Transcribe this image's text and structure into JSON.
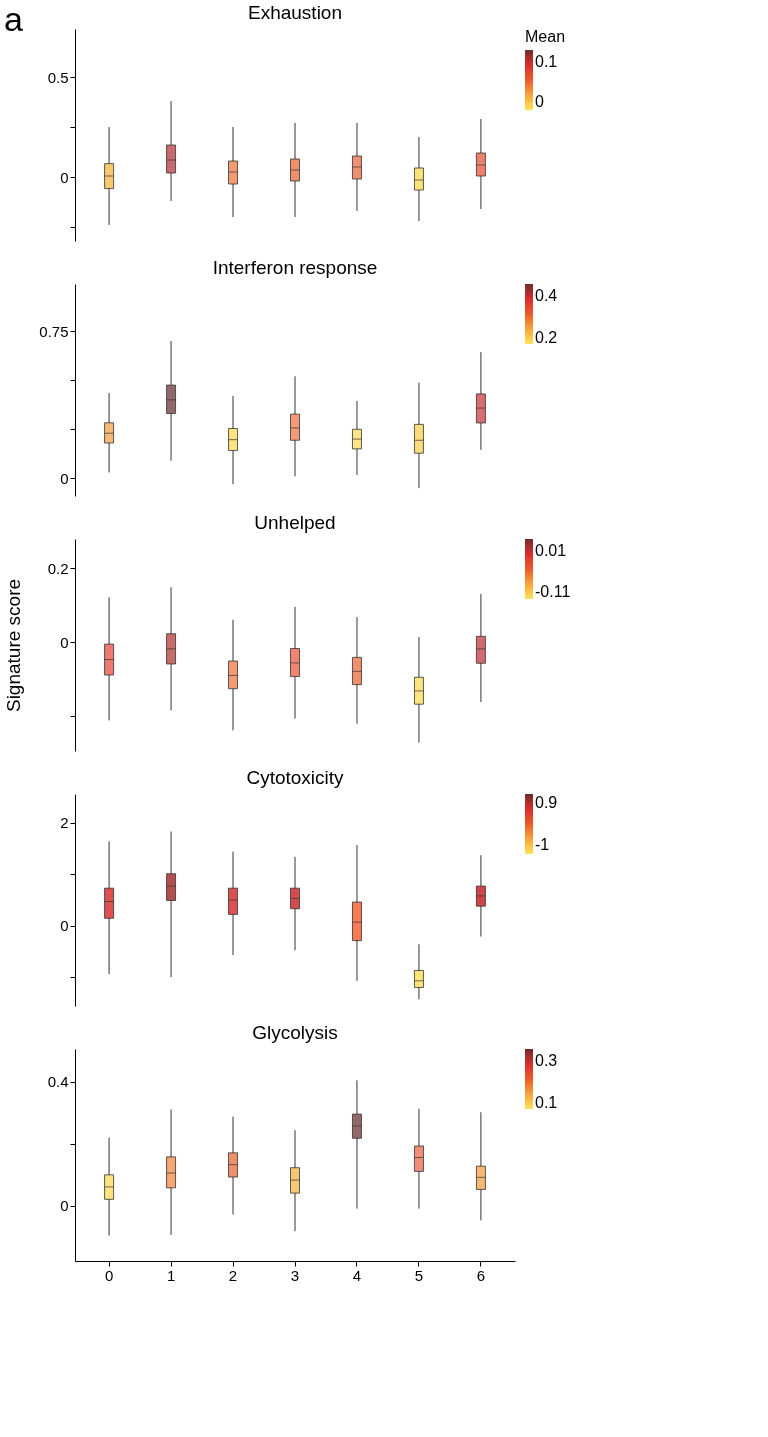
{
  "chart_data": [
    {
      "type": "box",
      "title": "Exhaustion",
      "annotations": [
        "a"
      ],
      "categories": [
        "0",
        "1",
        "2",
        "3",
        "4",
        "5",
        "6"
      ],
      "tick_labels": "y",
      "grid": false,
      "ylim": [
        -0.32,
        0.74
      ],
      "yticks": [
        {
          "value": -0.25,
          "label": null
        },
        0,
        {
          "value": 0.25,
          "label": null
        },
        0.5
      ],
      "clabel": "Mean",
      "clim": [
        -0.02,
        0.13
      ],
      "cticks": [
        0,
        0.1
      ],
      "colors": [
        "#f9c86f",
        "#c86b6e",
        "#f59a72",
        "#f08f6e",
        "#f09072",
        "#fbe37c",
        "#f07e6c"
      ],
      "boxes": [
        {
          "low": -0.24,
          "q1": -0.058,
          "median": 0.005,
          "q3": 0.067,
          "high": 0.25
        },
        {
          "low": -0.12,
          "q1": 0.02,
          "median": 0.085,
          "q3": 0.16,
          "high": 0.38
        },
        {
          "low": -0.2,
          "q1": -0.035,
          "median": 0.025,
          "q3": 0.08,
          "high": 0.25
        },
        {
          "low": -0.2,
          "q1": -0.02,
          "median": 0.035,
          "q3": 0.09,
          "high": 0.27
        },
        {
          "low": -0.17,
          "q1": -0.01,
          "median": 0.05,
          "q3": 0.105,
          "high": 0.27
        },
        {
          "low": -0.22,
          "q1": -0.065,
          "median": -0.015,
          "q3": 0.045,
          "high": 0.2
        },
        {
          "low": -0.16,
          "q1": 0.005,
          "median": 0.06,
          "q3": 0.12,
          "high": 0.29
        }
      ]
    },
    {
      "type": "box",
      "title": "Interferon response",
      "categories": [
        "0",
        "1",
        "2",
        "3",
        "4",
        "5",
        "6"
      ],
      "tick_labels": "y",
      "grid": false,
      "ylim": [
        -0.09,
        0.99
      ],
      "yticks": [
        0,
        {
          "value": 0.25,
          "label": null
        },
        {
          "value": 0.5,
          "label": null
        },
        0.75
      ],
      "clim": [
        0.17,
        0.46
      ],
      "cticks": [
        0.2,
        0.4
      ],
      "colors": [
        "#f6b877",
        "#93686a",
        "#fde47e",
        "#f59a78",
        "#fde585",
        "#fcdc7a",
        "#d96b72"
      ],
      "boxes": [
        {
          "low": 0.03,
          "q1": 0.18,
          "median": 0.23,
          "q3": 0.283,
          "high": 0.435
        },
        {
          "low": 0.09,
          "q1": 0.33,
          "median": 0.4,
          "q3": 0.475,
          "high": 0.7
        },
        {
          "low": -0.03,
          "q1": 0.142,
          "median": 0.197,
          "q3": 0.254,
          "high": 0.42
        },
        {
          "low": 0.01,
          "q1": 0.194,
          "median": 0.257,
          "q3": 0.327,
          "high": 0.52
        },
        {
          "low": 0.017,
          "q1": 0.15,
          "median": 0.2,
          "q3": 0.25,
          "high": 0.394
        },
        {
          "low": -0.05,
          "q1": 0.128,
          "median": 0.194,
          "q3": 0.275,
          "high": 0.487
        },
        {
          "low": 0.145,
          "q1": 0.282,
          "median": 0.358,
          "q3": 0.43,
          "high": 0.643
        }
      ]
    },
    {
      "type": "box",
      "title": "Unhelped",
      "ylabel": "Signature score",
      "categories": [
        "0",
        "1",
        "2",
        "3",
        "4",
        "5",
        "6"
      ],
      "tick_labels": "y",
      "grid": false,
      "ylim": [
        -0.295,
        0.28
      ],
      "yticks": [
        {
          "value": -0.2,
          "label": null
        },
        0,
        0.2
      ],
      "clim": [
        -0.131,
        0.044
      ],
      "cticks": [
        -0.11,
        0.01
      ],
      "colors": [
        "#f07a72",
        "#c86c6a",
        "#f69a76",
        "#f28572",
        "#f0916c",
        "#fde47e",
        "#d3696e"
      ],
      "boxes": [
        {
          "low": -0.212,
          "q1": -0.089,
          "median": -0.047,
          "q3": -0.005,
          "high": 0.122
        },
        {
          "low": -0.185,
          "q1": -0.059,
          "median": -0.018,
          "q3": 0.023,
          "high": 0.149
        },
        {
          "low": -0.239,
          "q1": -0.126,
          "median": -0.09,
          "q3": -0.051,
          "high": 0.061
        },
        {
          "low": -0.207,
          "q1": -0.093,
          "median": -0.056,
          "q3": -0.017,
          "high": 0.096
        },
        {
          "low": -0.221,
          "q1": -0.115,
          "median": -0.079,
          "q3": -0.041,
          "high": 0.068
        },
        {
          "low": -0.272,
          "q1": -0.168,
          "median": -0.132,
          "q3": -0.095,
          "high": 0.014
        },
        {
          "low": -0.162,
          "q1": -0.057,
          "median": -0.018,
          "q3": 0.016,
          "high": 0.131
        }
      ]
    },
    {
      "type": "box",
      "title": "Cytotoxicity",
      "categories": [
        "0",
        "1",
        "2",
        "3",
        "4",
        "5",
        "6"
      ],
      "tick_labels": "y",
      "grid": false,
      "ylim": [
        -1.56,
        2.56
      ],
      "yticks": [
        {
          "value": -1,
          "label": null
        },
        0,
        {
          "value": 1,
          "label": null
        },
        2
      ],
      "clim": [
        -1.43,
        1.33
      ],
      "cticks": [
        -1,
        0.9
      ],
      "colors": [
        "#e15050",
        "#b24f4c",
        "#dd5050",
        "#d44d4e",
        "#f87a55",
        "#fde474",
        "#cf4448"
      ],
      "boxes": [
        {
          "low": -0.94,
          "q1": 0.145,
          "median": 0.47,
          "q3": 0.73,
          "high": 1.64
        },
        {
          "low": -1.0,
          "q1": 0.49,
          "median": 0.77,
          "q3": 1.01,
          "high": 1.83
        },
        {
          "low": -0.57,
          "q1": 0.22,
          "median": 0.5,
          "q3": 0.73,
          "high": 1.44
        },
        {
          "low": -0.475,
          "q1": 0.33,
          "median": 0.53,
          "q3": 0.73,
          "high": 1.34
        },
        {
          "low": -1.07,
          "q1": -0.29,
          "median": 0.07,
          "q3": 0.46,
          "high": 1.57
        },
        {
          "low": -1.43,
          "q1": -1.2,
          "median": -1.07,
          "q3": -0.87,
          "high": -0.36
        },
        {
          "low": -0.21,
          "q1": 0.38,
          "median": 0.58,
          "q3": 0.77,
          "high": 1.37
        }
      ]
    },
    {
      "type": "box",
      "title": "Glycolysis",
      "categories": [
        "0",
        "1",
        "2",
        "3",
        "4",
        "5",
        "6"
      ],
      "grid": false,
      "ylim": [
        -0.178,
        0.506
      ],
      "yticks": [
        0,
        {
          "value": 0.2,
          "label": null
        },
        0.4
      ],
      "clim": [
        0.07,
        0.357
      ],
      "cticks": [
        0.1,
        0.3
      ],
      "colors": [
        "#fde47e",
        "#f5a671",
        "#f08f6c",
        "#fac870",
        "#946868",
        "#f08f75",
        "#f7b875"
      ],
      "boxes": [
        {
          "low": -0.096,
          "q1": 0.021,
          "median": 0.061,
          "q3": 0.1,
          "high": 0.22
        },
        {
          "low": -0.094,
          "q1": 0.058,
          "median": 0.106,
          "q3": 0.158,
          "high": 0.311
        },
        {
          "low": -0.028,
          "q1": 0.093,
          "median": 0.133,
          "q3": 0.171,
          "high": 0.288
        },
        {
          "low": -0.082,
          "q1": 0.041,
          "median": 0.083,
          "q3": 0.123,
          "high": 0.244
        },
        {
          "low": -0.009,
          "q1": 0.218,
          "median": 0.258,
          "q3": 0.296,
          "high": 0.405
        },
        {
          "low": -0.009,
          "q1": 0.111,
          "median": 0.156,
          "q3": 0.193,
          "high": 0.313
        },
        {
          "low": -0.047,
          "q1": 0.053,
          "median": 0.092,
          "q3": 0.128,
          "high": 0.302
        }
      ]
    }
  ]
}
